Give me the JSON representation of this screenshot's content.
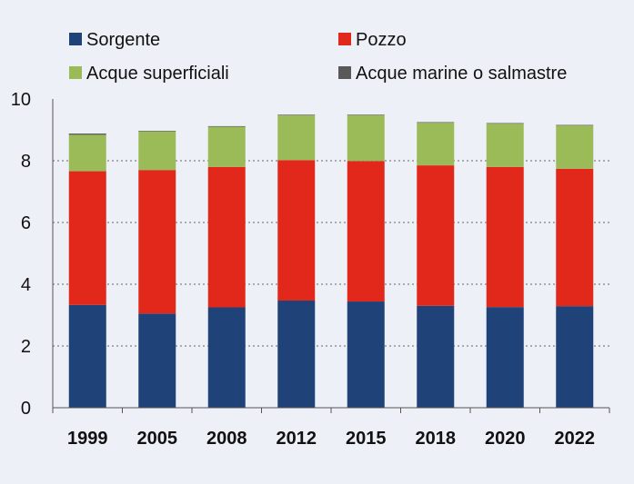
{
  "chart_data": {
    "type": "bar",
    "stacked": true,
    "title": "",
    "xlabel": "",
    "ylabel": "",
    "categories": [
      "1999",
      "2005",
      "2008",
      "2012",
      "2015",
      "2018",
      "2020",
      "2022"
    ],
    "ylim": [
      0,
      10
    ],
    "yticks": [
      "0",
      "2",
      "4",
      "6",
      "8",
      "10"
    ],
    "grid": "horizontal dashed at 2, 4, 6, 8",
    "legend_position": "top",
    "series": [
      {
        "name": "Sorgente",
        "color": "#1f4278",
        "values": [
          3.33,
          3.05,
          3.25,
          3.47,
          3.44,
          3.3,
          3.26,
          3.29
        ]
      },
      {
        "name": "Pozzo",
        "color": "#e2281b",
        "values": [
          4.33,
          4.65,
          4.55,
          4.55,
          4.55,
          4.55,
          4.54,
          4.45
        ]
      },
      {
        "name": "Acque superficiali",
        "color": "#9bbb59",
        "values": [
          1.18,
          1.25,
          1.3,
          1.45,
          1.48,
          1.38,
          1.4,
          1.4
        ]
      },
      {
        "name": "Acque marine o salmastre",
        "color": "#595959",
        "values": [
          0.04,
          0.02,
          0.02,
          0.02,
          0.02,
          0.02,
          0.02,
          0.02
        ]
      }
    ]
  }
}
